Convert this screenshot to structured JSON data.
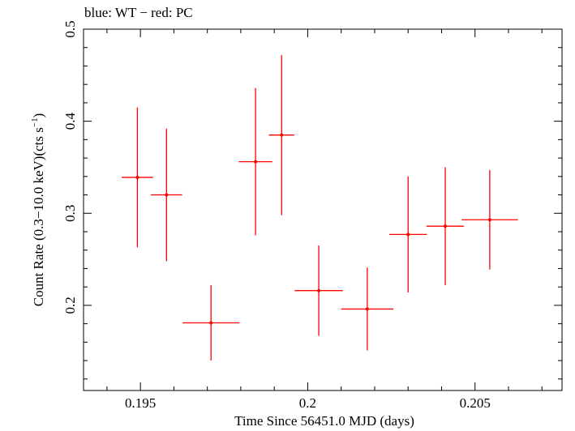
{
  "chart_data": {
    "type": "scatter",
    "title": "blue: WT − red: PC",
    "xlabel": "Time Since 56451.0 MJD (days)",
    "ylabel_main": "Count Rate (0.3−10.0 keV)(cts s",
    "ylabel_sup": "−1",
    "ylabel_end": ")",
    "xlim": [
      0.1933,
      0.2076
    ],
    "ylim": [
      0.1075,
      0.5
    ],
    "xticks": [
      0.195,
      0.2,
      0.205
    ],
    "xtick_labels": [
      "0.195",
      "0.2",
      "0.205"
    ],
    "yticks": [
      0.2,
      0.3,
      0.4,
      0.5
    ],
    "ytick_labels": [
      "0.2",
      "0.3",
      "0.4",
      "0.5"
    ],
    "grid": false,
    "series": [
      {
        "color": "#ff0000",
        "points": [
          {
            "x": 0.19491,
            "y": 0.339,
            "xerr": 0.00047,
            "yerr_low": 0.076,
            "yerr_high": 0.076
          },
          {
            "x": 0.19578,
            "y": 0.32,
            "xerr": 0.00047,
            "yerr_low": 0.072,
            "yerr_high": 0.072
          },
          {
            "x": 0.19711,
            "y": 0.181,
            "xerr": 0.00085,
            "yerr_low": 0.041,
            "yerr_high": 0.041
          },
          {
            "x": 0.19844,
            "y": 0.356,
            "xerr": 0.0005,
            "yerr_low": 0.08,
            "yerr_high": 0.08
          },
          {
            "x": 0.19922,
            "y": 0.385,
            "xerr": 0.00038,
            "yerr_low": 0.087,
            "yerr_high": 0.087
          },
          {
            "x": 0.20033,
            "y": 0.216,
            "xerr": 0.00072,
            "yerr_low": 0.049,
            "yerr_high": 0.049
          },
          {
            "x": 0.20178,
            "y": 0.196,
            "xerr": 0.00078,
            "yerr_low": 0.045,
            "yerr_high": 0.045
          },
          {
            "x": 0.203,
            "y": 0.277,
            "xerr": 0.00056,
            "yerr_low": 0.063,
            "yerr_high": 0.063
          },
          {
            "x": 0.20411,
            "y": 0.286,
            "xerr": 0.00056,
            "yerr_low": 0.064,
            "yerr_high": 0.064
          },
          {
            "x": 0.20544,
            "y": 0.293,
            "xerr": 0.00084,
            "yerr_low": 0.054,
            "yerr_high": 0.054
          }
        ]
      }
    ]
  }
}
